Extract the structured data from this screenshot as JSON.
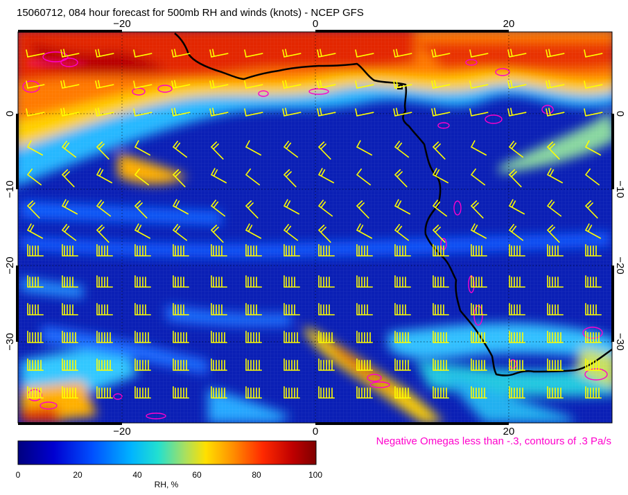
{
  "title": "15060712, 084 hour forecast for 500mb RH and winds (knots) - NCEP GFS",
  "omega_note": "Negative Omegas less than -.3, contours of .3 Pa/s",
  "colorbar": {
    "label": "RH, %",
    "ticks": [
      "0",
      "20",
      "40",
      "60",
      "80",
      "100"
    ],
    "colors": [
      "#00007f",
      "#0033cc",
      "#0080ff",
      "#22d3e6",
      "#c6e055",
      "#ffd400",
      "#ff7f00",
      "#e81c00",
      "#7f0000"
    ]
  },
  "axes": {
    "lon_range": [
      -30,
      31
    ],
    "lat_range": [
      -40,
      9
    ],
    "lon_ticks": [
      -20,
      0,
      20
    ],
    "lat_ticks": [
      0,
      -10,
      -20,
      -30
    ],
    "lon_labels": [
      "−20",
      "0",
      "20"
    ],
    "lat_labels": [
      "0",
      "−10",
      "−20",
      "−30"
    ]
  },
  "colors": {
    "coastline": "#000000",
    "wind_barbs": "#ffff00",
    "omega_contours": "#ff00cc",
    "graticule": "#000000"
  },
  "icons": {
    "wind_barb": "wind-barb-icon",
    "coastline": "coastline-icon"
  }
}
